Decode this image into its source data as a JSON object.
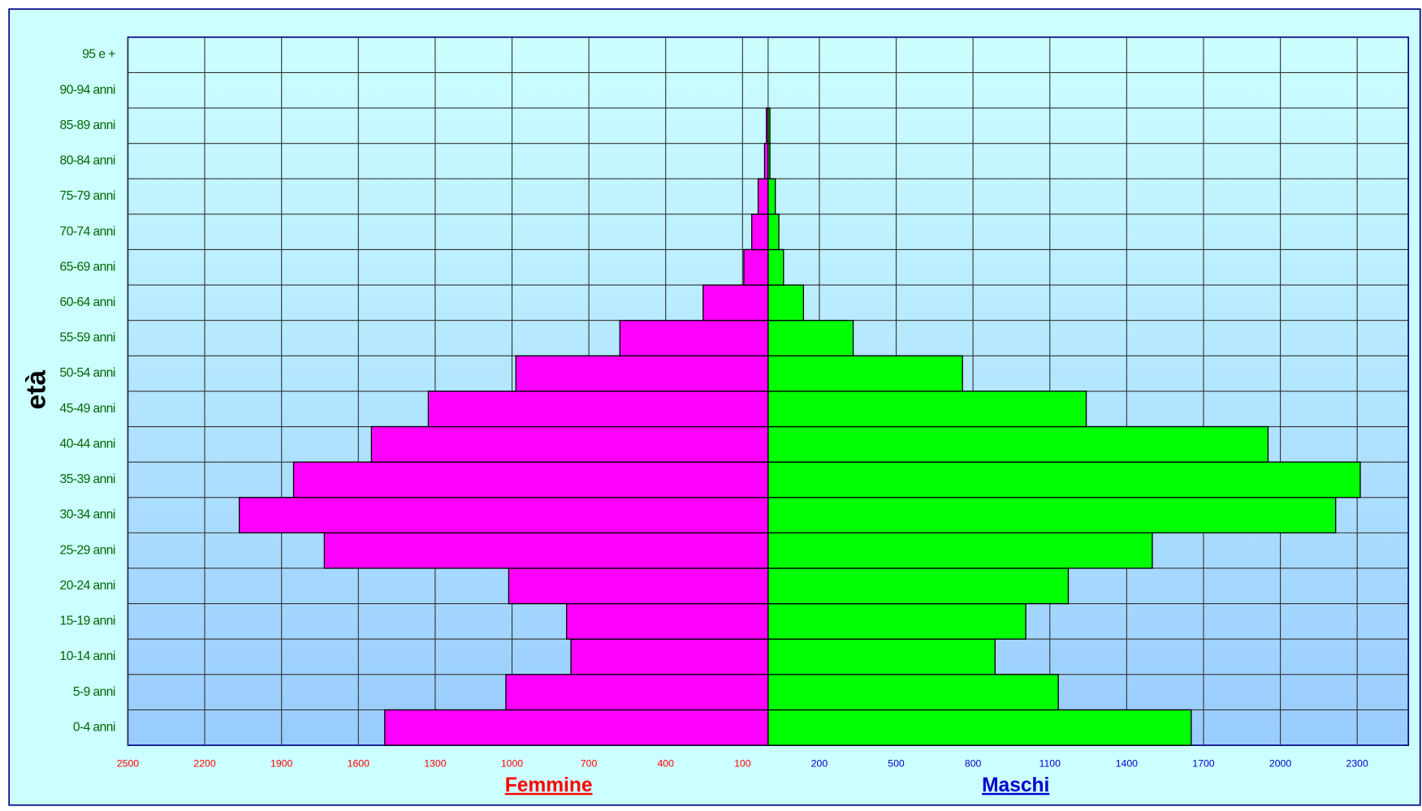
{
  "chart_data": {
    "type": "pyramid",
    "ylabel": "età",
    "categories": [
      "0-4 anni",
      "5-9 anni",
      "10-14 anni",
      "15-19 anni",
      "20-24 anni",
      "25-29 anni",
      "30-34 anni",
      "35-39 anni",
      "40-44 anni",
      "45-49 anni",
      "50-54 anni",
      "55-59 anni",
      "60-64 anni",
      "65-69 anni",
      "70-74 anni",
      "75-79 anni",
      "80-84 anni",
      "85-89 anni",
      "90-94 anni",
      "95 e +"
    ],
    "series": [
      {
        "name": "Femmine",
        "color": "#ff00ff",
        "label_color": "#ff0000",
        "values": [
          -1497,
          -1024,
          -770,
          -787,
          -1013,
          -1733,
          -2065,
          -1853,
          -1549,
          -1327,
          -985,
          -579,
          -254,
          -95,
          -64,
          -39,
          -14,
          -7,
          0,
          0
        ]
      },
      {
        "name": "Maschi",
        "color": "#00ff00",
        "label_color": "#0000cc",
        "values": [
          1652,
          1133,
          886,
          1006,
          1172,
          1500,
          2216,
          2312,
          1952,
          1242,
          759,
          332,
          138,
          60,
          42,
          28,
          7,
          7,
          0,
          0
        ]
      }
    ],
    "xlim": [
      -2500,
      2500
    ],
    "xticks": [
      {
        "value": -2500,
        "label": "2500"
      },
      {
        "value": -2200,
        "label": "2200"
      },
      {
        "value": -1900,
        "label": "1900"
      },
      {
        "value": -1600,
        "label": "1600"
      },
      {
        "value": -1300,
        "label": "1300"
      },
      {
        "value": -1000,
        "label": "1000"
      },
      {
        "value": -700,
        "label": "700"
      },
      {
        "value": -400,
        "label": "400"
      },
      {
        "value": -100,
        "label": "100"
      },
      200,
      500,
      800,
      1100,
      1400,
      1700,
      2000,
      2300
    ],
    "grid": true
  }
}
